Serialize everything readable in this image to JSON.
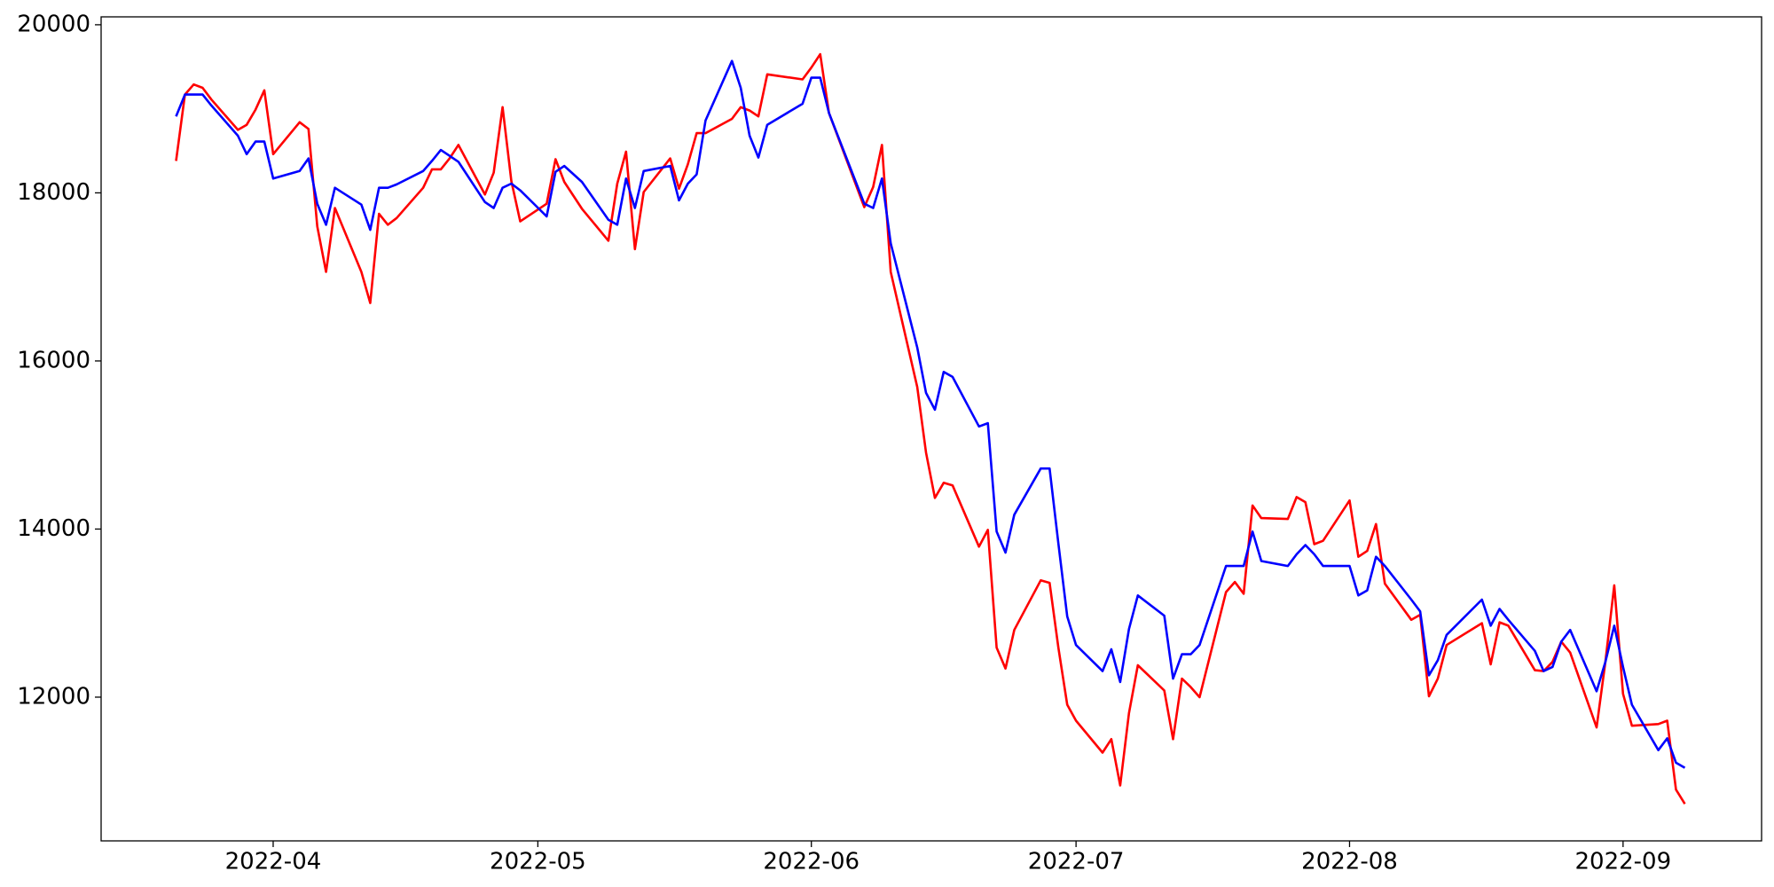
{
  "chart_data": {
    "type": "line",
    "x": [
      80,
      81,
      82,
      83,
      84,
      87,
      88,
      89,
      90,
      91,
      94,
      95,
      96,
      97,
      98,
      101,
      102,
      103,
      104,
      105,
      108,
      109,
      110,
      111,
      112,
      115,
      116,
      117,
      118,
      119,
      122,
      123,
      124,
      126,
      129,
      130,
      131,
      132,
      133,
      136,
      137,
      138,
      139,
      140,
      143,
      144,
      145,
      146,
      147,
      151,
      152,
      153,
      154,
      158,
      159,
      160,
      161,
      164,
      165,
      166,
      167,
      168,
      171,
      172,
      173,
      174,
      175,
      178,
      179,
      180,
      181,
      182,
      185,
      186,
      187,
      188,
      189,
      192,
      193,
      194,
      195,
      196,
      199,
      200,
      201,
      202,
      203,
      206,
      207,
      208,
      209,
      210,
      213,
      214,
      215,
      216,
      217,
      220,
      221,
      222,
      223,
      224,
      228,
      229,
      230,
      231,
      234,
      235,
      236,
      237,
      238,
      241,
      242,
      243,
      244,
      245,
      248,
      249,
      250,
      251
    ],
    "series": [
      {
        "color": "#ff0000",
        "values": [
          18380,
          19170,
          19290,
          19250,
          19110,
          18750,
          18810,
          18990,
          19220,
          18460,
          18840,
          18760,
          17600,
          17060,
          17820,
          17060,
          16690,
          17750,
          17620,
          17700,
          18060,
          18280,
          18280,
          18410,
          18570,
          17980,
          18240,
          19020,
          18140,
          17660,
          17870,
          18400,
          18130,
          17810,
          17430,
          18110,
          18490,
          17330,
          18010,
          18410,
          18050,
          18340,
          18710,
          18710,
          18880,
          19020,
          18980,
          18910,
          19410,
          19350,
          19490,
          19650,
          18950,
          17830,
          18070,
          18570,
          17060,
          15690,
          14910,
          14370,
          14550,
          14520,
          13790,
          13990,
          12590,
          12340,
          12800,
          13390,
          13360,
          12590,
          11910,
          11720,
          11340,
          11500,
          10950,
          11810,
          12380,
          12080,
          11500,
          12220,
          12120,
          12000,
          13250,
          13370,
          13230,
          14280,
          14130,
          14120,
          14380,
          14320,
          13820,
          13860,
          14340,
          13670,
          13740,
          14060,
          13350,
          12920,
          12980,
          12010,
          12220,
          12620,
          12880,
          12390,
          12890,
          12850,
          12320,
          12310,
          12420,
          12660,
          12530,
          11640,
          12420,
          13330,
          12040,
          11660,
          11680,
          11720,
          10900,
          10730
        ]
      },
      {
        "color": "#0000ff",
        "values": [
          18910,
          19170,
          19170,
          19170,
          19040,
          18680,
          18460,
          18610,
          18610,
          18170,
          18260,
          18410,
          17870,
          17620,
          18060,
          17860,
          17560,
          18060,
          18060,
          18100,
          18260,
          18380,
          18510,
          18440,
          18370,
          17890,
          17820,
          18060,
          18110,
          18030,
          17720,
          18250,
          18320,
          18130,
          17680,
          17620,
          18170,
          17820,
          18260,
          18320,
          17910,
          18110,
          18220,
          18860,
          19570,
          19250,
          18680,
          18420,
          18810,
          19060,
          19370,
          19370,
          18950,
          17870,
          17820,
          18170,
          17400,
          16160,
          15620,
          15420,
          15870,
          15810,
          15220,
          15260,
          13970,
          13720,
          14170,
          14720,
          14720,
          13830,
          12960,
          12620,
          12310,
          12570,
          12180,
          12810,
          13210,
          12970,
          12220,
          12510,
          12510,
          12620,
          13560,
          13560,
          13560,
          13970,
          13620,
          13560,
          13700,
          13810,
          13700,
          13560,
          13560,
          13210,
          13270,
          13670,
          13560,
          13160,
          13020,
          12260,
          12440,
          12740,
          13160,
          12850,
          13050,
          12920,
          12550,
          12310,
          12360,
          12660,
          12800,
          12070,
          12420,
          12850,
          12360,
          11910,
          11370,
          11510,
          11220,
          11160
        ]
      }
    ],
    "xlim": [
      71.5,
      259.7
    ],
    "xticks": [
      {
        "value": 91,
        "label": "2022-04"
      },
      {
        "value": 121,
        "label": "2022-05"
      },
      {
        "value": 152,
        "label": "2022-06"
      },
      {
        "value": 182,
        "label": "2022-07"
      },
      {
        "value": 213,
        "label": "2022-08"
      },
      {
        "value": 244,
        "label": "2022-09"
      }
    ],
    "ylim": [
      10290,
      20094
    ],
    "yticks": [
      12000,
      14000,
      16000,
      18000,
      20000
    ],
    "grid": false
  }
}
